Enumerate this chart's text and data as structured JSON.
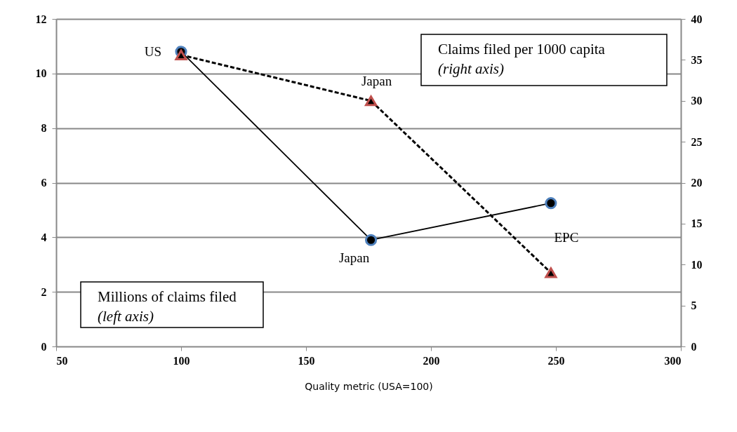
{
  "chart_data": {
    "type": "line",
    "xlabel": "Quality metric  (USA=100)",
    "x": [
      100,
      176,
      248
    ],
    "series": [
      {
        "name": "Millions of claims filed",
        "color": "#4f81bd",
        "values": [
          10.8,
          3.9,
          5.25
        ],
        "marker": "circle",
        "line_style": "solid",
        "axis": "y"
      },
      {
        "name": "Claims filed per 1000 capita",
        "color": "#c0504d",
        "values": [
          35.6,
          30,
          9
        ],
        "marker": "triangle",
        "line_style": "dashed",
        "axis": "y2"
      }
    ],
    "xlim": [
      50,
      300
    ],
    "xticks": [
      50,
      100,
      150,
      200,
      250,
      300
    ],
    "ylim": [
      0,
      12
    ],
    "yticks": [
      0,
      2,
      4,
      6,
      8,
      10,
      12
    ],
    "y2lim": [
      0,
      40
    ],
    "y2ticks": [
      0,
      5,
      10,
      15,
      20,
      25,
      30,
      35,
      40
    ],
    "grid": "y",
    "annotations": [
      {
        "text": "US",
        "x": 100,
        "y": 10.8
      },
      {
        "text": "Japan",
        "x": 176,
        "y": 9
      },
      {
        "text": "Japan",
        "x": 176,
        "y": 3.9
      },
      {
        "text": "EPC",
        "x": 248,
        "y": 2.7
      },
      "(left axis)",
      "(right axis)"
    ]
  }
}
